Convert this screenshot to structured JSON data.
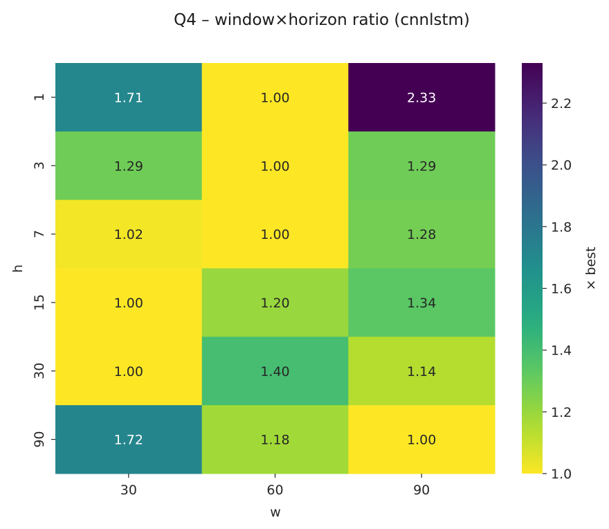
{
  "chart_data": {
    "type": "heatmap",
    "title": "Q4 – window×horizon ratio (cnnlstm)",
    "xlabel": "w",
    "ylabel": "h",
    "x_categories": [
      "30",
      "60",
      "90"
    ],
    "y_categories": [
      "1",
      "3",
      "7",
      "15",
      "30",
      "90"
    ],
    "values": [
      [
        1.71,
        1.0,
        2.33
      ],
      [
        1.29,
        1.0,
        1.29
      ],
      [
        1.02,
        1.0,
        1.28
      ],
      [
        1.0,
        1.2,
        1.34
      ],
      [
        1.0,
        1.4,
        1.14
      ],
      [
        1.72,
        1.18,
        1.0
      ]
    ],
    "cell_labels": [
      [
        "1.71",
        "1.00",
        "2.33"
      ],
      [
        "1.29",
        "1.00",
        "1.29"
      ],
      [
        "1.02",
        "1.00",
        "1.28"
      ],
      [
        "1.00",
        "1.20",
        "1.34"
      ],
      [
        "1.00",
        "1.40",
        "1.14"
      ],
      [
        "1.72",
        "1.18",
        "1.00"
      ]
    ],
    "colormap": "viridis_r",
    "colorbar": {
      "label": "× best",
      "vmin": 1.0,
      "vmax": 2.33,
      "ticks": [
        1.0,
        1.2,
        1.4,
        1.6,
        1.8,
        2.0,
        2.2
      ],
      "tick_labels": [
        "1.0",
        "1.2",
        "1.4",
        "1.6",
        "1.8",
        "2.0",
        "2.2"
      ]
    },
    "grid": false
  }
}
